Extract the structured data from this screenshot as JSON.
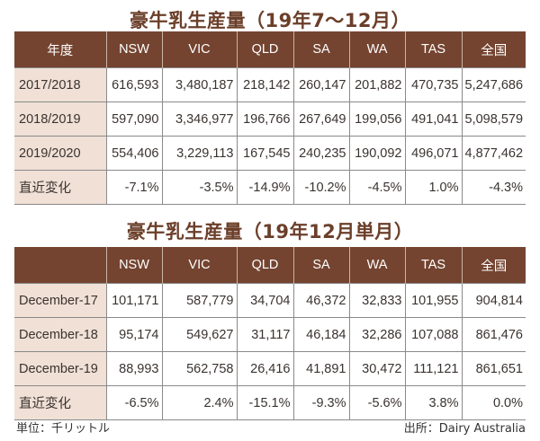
{
  "tables": [
    {
      "title": "豪牛乳生産量（19年7～12月）",
      "headers": [
        "年度",
        "NSW",
        "VIC",
        "QLD",
        "SA",
        "WA",
        "TAS",
        "全国"
      ],
      "rows": [
        [
          "2017/2018",
          "616,593",
          "3,480,187",
          "218,142",
          "260,147",
          "201,882",
          "470,735",
          "5,247,686"
        ],
        [
          "2018/2019",
          "597,090",
          "3,346,977",
          "196,766",
          "267,649",
          "199,056",
          "491,041",
          "5,098,579"
        ],
        [
          "2019/2020",
          "554,406",
          "3,229,113",
          "167,545",
          "240,235",
          "190,092",
          "496,071",
          "4,877,462"
        ],
        [
          "直近変化",
          "-7.1%",
          "-3.5%",
          "-14.9%",
          "-10.2%",
          "-4.5%",
          "1.0%",
          "-4.3%"
        ]
      ]
    },
    {
      "title": "豪牛乳生産量（19年12月単月）",
      "headers": [
        "",
        "NSW",
        "VIC",
        "QLD",
        "SA",
        "WA",
        "TAS",
        "全国"
      ],
      "rows": [
        [
          "December-17",
          "101,171",
          "587,779",
          "34,704",
          "46,372",
          "32,833",
          "101,955",
          "904,814"
        ],
        [
          "December-18",
          "95,174",
          "549,627",
          "31,117",
          "46,184",
          "32,286",
          "107,088",
          "861,476"
        ],
        [
          "December-19",
          "88,993",
          "562,758",
          "26,416",
          "41,891",
          "30,472",
          "111,121",
          "861,651"
        ],
        [
          "直近変化",
          "-6.5%",
          "2.4%",
          "-15.1%",
          "-9.3%",
          "-5.6%",
          "3.8%",
          "0.0%"
        ]
      ]
    }
  ],
  "footer": {
    "unit": "単位：千リットル",
    "source": "出所：Dairy Australia"
  }
}
